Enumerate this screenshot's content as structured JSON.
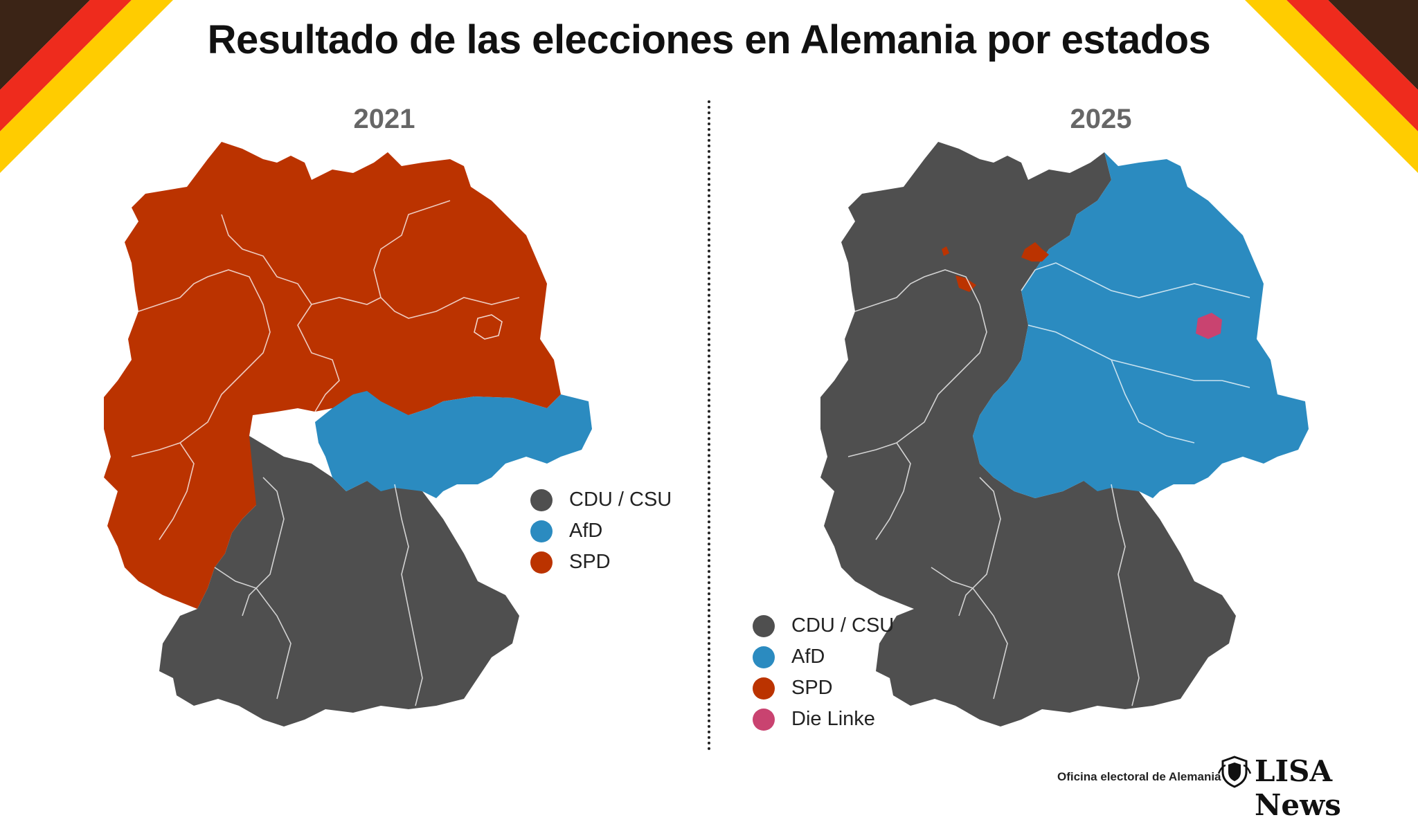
{
  "title": "Resultado de las elecciones en Alemania por estados",
  "colors": {
    "cdu_csu": "#4f4f4f",
    "afd": "#2b8bc0",
    "spd": "#bb3300",
    "linke": "#c94370",
    "flag_black": "#3b2416",
    "flag_red": "#ee2b1d",
    "flag_gold": "#ffcc00"
  },
  "maps": [
    {
      "year": "2021",
      "legend": [
        {
          "label": "CDU / CSU",
          "color": "#4f4f4f"
        },
        {
          "label": "AfD",
          "color": "#2b8bc0"
        },
        {
          "label": "SPD",
          "color": "#bb3300"
        }
      ]
    },
    {
      "year": "2025",
      "legend": [
        {
          "label": "CDU / CSU",
          "color": "#4f4f4f"
        },
        {
          "label": "AfD",
          "color": "#2b8bc0"
        },
        {
          "label": "SPD",
          "color": "#bb3300"
        },
        {
          "label": "Die Linke",
          "color": "#c94370"
        }
      ]
    }
  ],
  "footer": {
    "source": "Oficina electoral de Alemania",
    "logo": "LISA News",
    "logo_icon": "shield-crest-icon"
  }
}
